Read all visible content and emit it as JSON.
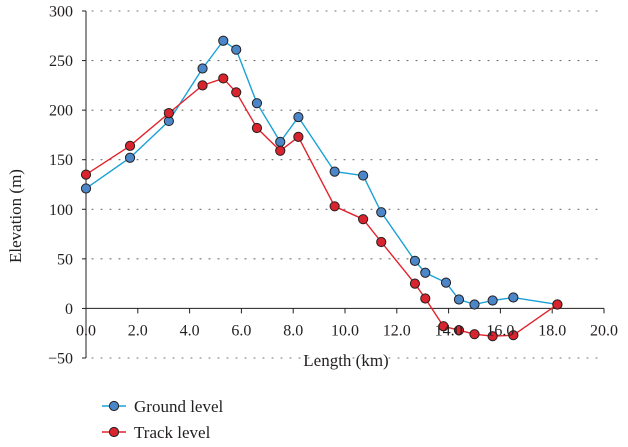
{
  "chart_data": {
    "type": "line",
    "xlabel": "Length (km)",
    "ylabel": "Elevation (m)",
    "xlim": [
      0,
      20
    ],
    "ylim": [
      -50,
      300
    ],
    "xticks": [
      "0.0",
      "2.0",
      "4.0",
      "6.0",
      "8.0",
      "10.0",
      "12.0",
      "14.0",
      "16.0",
      "18.0",
      "20.0"
    ],
    "xtick_values": [
      0,
      2,
      4,
      6,
      8,
      10,
      12,
      14,
      16,
      18,
      20
    ],
    "yticks": [
      "300",
      "250",
      "200",
      "150",
      "100",
      "50",
      "0",
      "−50"
    ],
    "ytick_values": [
      300,
      250,
      200,
      150,
      100,
      50,
      0,
      -50
    ],
    "grid": "horizontal dotted",
    "legend_position": "bottom-left",
    "series": [
      {
        "name": "Ground level",
        "color": "#1ba1d6",
        "marker_color": "#4a86c8",
        "points": [
          [
            0.0,
            121
          ],
          [
            1.7,
            152
          ],
          [
            3.2,
            189
          ],
          [
            4.5,
            242
          ],
          [
            5.3,
            270
          ],
          [
            5.8,
            261
          ],
          [
            6.6,
            207
          ],
          [
            7.5,
            168
          ],
          [
            8.2,
            193
          ],
          [
            9.6,
            138
          ],
          [
            10.7,
            134
          ],
          [
            11.4,
            97
          ],
          [
            12.7,
            48
          ],
          [
            13.1,
            36
          ],
          [
            13.9,
            26
          ],
          [
            14.4,
            9
          ],
          [
            15.0,
            4
          ],
          [
            15.7,
            8
          ],
          [
            16.5,
            11
          ],
          [
            18.2,
            4
          ]
        ]
      },
      {
        "name": "Track level",
        "color": "#e3222b",
        "marker_color": "#d9232d",
        "points": [
          [
            0.0,
            135
          ],
          [
            1.7,
            164
          ],
          [
            3.2,
            197
          ],
          [
            4.5,
            225
          ],
          [
            5.3,
            232
          ],
          [
            5.8,
            218
          ],
          [
            6.6,
            182
          ],
          [
            7.5,
            159
          ],
          [
            8.2,
            173
          ],
          [
            9.6,
            103
          ],
          [
            10.7,
            90
          ],
          [
            11.4,
            67
          ],
          [
            12.7,
            25
          ],
          [
            13.1,
            10
          ],
          [
            13.8,
            -18
          ],
          [
            14.4,
            -22
          ],
          [
            15.0,
            -26
          ],
          [
            15.7,
            -28
          ],
          [
            16.5,
            -27
          ],
          [
            18.2,
            4
          ]
        ]
      }
    ]
  }
}
